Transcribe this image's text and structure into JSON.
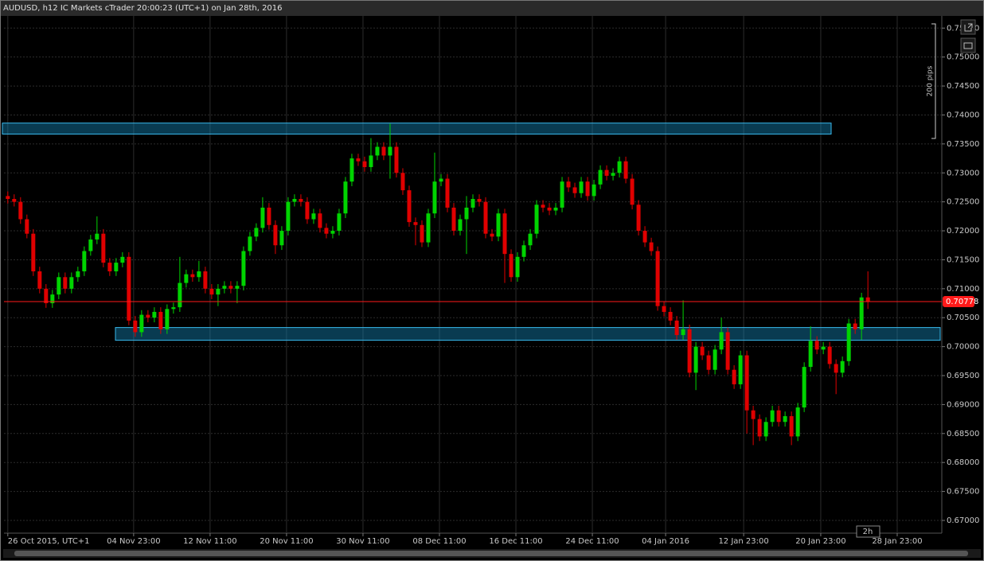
{
  "chart_data": {
    "type": "candlestick",
    "title": "AUDUSD, h12 IC Markets cTrader 20:00:23 (UTC+1) on Jan 28th, 2016",
    "scale_note": "200 pips",
    "timeframe_badge": "2h",
    "up_color": "#00d400",
    "down_color": "#e00000",
    "grid": true,
    "xlim": [
      -0.6,
      146.6
    ],
    "xticks": [
      {
        "value": 0,
        "label": "26 Oct 2015, UTC+1"
      },
      {
        "value": 19.75,
        "label": "04 Nov 23:00"
      },
      {
        "value": 31.75,
        "label": "12 Nov 11:00"
      },
      {
        "value": 43.75,
        "label": "20 Nov 11:00"
      },
      {
        "value": 55.75,
        "label": "30 Nov 11:00"
      },
      {
        "value": 67.75,
        "label": "08 Dec 11:00"
      },
      {
        "value": 79.75,
        "label": "16 Dec 11:00"
      },
      {
        "value": 91.75,
        "label": "24 Dec 11:00"
      },
      {
        "value": 103.25,
        "label": "04 Jan 2016"
      },
      {
        "value": 115.5,
        "label": "12 Jan 23:00"
      },
      {
        "value": 127.6,
        "label": "20 Jan 23:00"
      },
      {
        "value": 139.6,
        "label": "28 Jan 23:00"
      }
    ],
    "ylim": [
      0.6678,
      0.7571
    ],
    "yticks": [
      {
        "value": 0.67,
        "label": "0.67000"
      },
      {
        "value": 0.675,
        "label": "0.67500"
      },
      {
        "value": 0.68,
        "label": "0.68000"
      },
      {
        "value": 0.685,
        "label": "0.68500"
      },
      {
        "value": 0.69,
        "label": "0.69000"
      },
      {
        "value": 0.695,
        "label": "0.69500"
      },
      {
        "value": 0.7,
        "label": "0.70000"
      },
      {
        "value": 0.705,
        "label": "0.70500"
      },
      {
        "value": 0.71,
        "label": "0.71000"
      },
      {
        "value": 0.715,
        "label": "0.71500"
      },
      {
        "value": 0.72,
        "label": "0.72000"
      },
      {
        "value": 0.725,
        "label": "0.72500"
      },
      {
        "value": 0.73,
        "label": "0.73000"
      },
      {
        "value": 0.735,
        "label": "0.73500"
      },
      {
        "value": 0.74,
        "label": "0.74000"
      },
      {
        "value": 0.745,
        "label": "0.74500"
      },
      {
        "value": 0.75,
        "label": "0.75000"
      },
      {
        "value": 0.755,
        "label": "0.75500"
      }
    ],
    "last_price": 0.70778,
    "last_price_color": "#ff1a1a",
    "zones": [
      {
        "low": 0.7367,
        "high": 0.7386
      },
      {
        "low": 0.7011,
        "high": 0.7033
      }
    ],
    "open": [
      0.726,
      0.7255,
      0.725,
      0.722,
      0.7195,
      0.713,
      0.71,
      0.7075,
      0.709,
      0.712,
      0.71,
      0.712,
      0.713,
      0.7165,
      0.7185,
      0.7195,
      0.7145,
      0.713,
      0.7145,
      0.7155,
      0.7045,
      0.7025,
      0.7055,
      0.705,
      0.706,
      0.703,
      0.7065,
      0.7068,
      0.711,
      0.7125,
      0.712,
      0.713,
      0.71,
      0.709,
      0.71,
      0.7105,
      0.71,
      0.7105,
      0.7165,
      0.719,
      0.7205,
      0.724,
      0.721,
      0.7175,
      0.72,
      0.725,
      0.7255,
      0.725,
      0.722,
      0.723,
      0.7205,
      0.7195,
      0.72,
      0.723,
      0.7285,
      0.7325,
      0.732,
      0.731,
      0.733,
      0.7345,
      0.733,
      0.7345,
      0.73,
      0.727,
      0.7215,
      0.721,
      0.718,
      0.723,
      0.7285,
      0.729,
      0.724,
      0.72,
      0.722,
      0.724,
      0.7255,
      0.725,
      0.7195,
      0.719,
      0.723,
      0.716,
      0.712,
      0.7155,
      0.7175,
      0.7195,
      0.7245,
      0.724,
      0.7235,
      0.724,
      0.7285,
      0.7275,
      0.7265,
      0.7285,
      0.726,
      0.728,
      0.7305,
      0.7295,
      0.73,
      0.732,
      0.729,
      0.7245,
      0.72,
      0.718,
      0.7165,
      0.707,
      0.706,
      0.7045,
      0.702,
      0.703,
      0.6955,
      0.7,
      0.6985,
      0.696,
      0.6995,
      0.7025,
      0.696,
      0.6935,
      0.6985,
      0.689,
      0.6875,
      0.6845,
      0.687,
      0.689,
      0.687,
      0.688,
      0.6845,
      0.6895,
      0.6965,
      0.701,
      0.6995,
      0.7,
      0.697,
      0.6955,
      0.6975,
      0.704,
      0.703,
      0.7085
    ],
    "high": [
      0.7268,
      0.7263,
      0.7258,
      0.7228,
      0.7203,
      0.7138,
      0.7108,
      0.7098,
      0.7128,
      0.7128,
      0.7128,
      0.7138,
      0.7173,
      0.7193,
      0.7225,
      0.7203,
      0.7153,
      0.7153,
      0.7163,
      0.7163,
      0.7053,
      0.7063,
      0.7063,
      0.7068,
      0.7068,
      0.7073,
      0.7076,
      0.7155,
      0.7133,
      0.7133,
      0.7148,
      0.7138,
      0.7108,
      0.7108,
      0.7113,
      0.7113,
      0.7113,
      0.7173,
      0.7198,
      0.7213,
      0.7258,
      0.7248,
      0.7218,
      0.7208,
      0.7258,
      0.7263,
      0.7263,
      0.7258,
      0.7238,
      0.7238,
      0.7213,
      0.7208,
      0.7238,
      0.7293,
      0.7333,
      0.7333,
      0.7328,
      0.736,
      0.7353,
      0.7353,
      0.7385,
      0.7353,
      0.7308,
      0.7278,
      0.7223,
      0.7218,
      0.7238,
      0.7335,
      0.7298,
      0.7298,
      0.7248,
      0.7228,
      0.726,
      0.7263,
      0.7263,
      0.7258,
      0.7203,
      0.7238,
      0.7238,
      0.7168,
      0.7163,
      0.7183,
      0.7203,
      0.7253,
      0.7253,
      0.7248,
      0.7248,
      0.7293,
      0.7293,
      0.7283,
      0.7293,
      0.7293,
      0.7288,
      0.7313,
      0.7313,
      0.7308,
      0.7328,
      0.7328,
      0.7298,
      0.7253,
      0.7208,
      0.7188,
      0.7173,
      0.7078,
      0.7068,
      0.7053,
      0.708,
      0.7038,
      0.7008,
      0.7008,
      0.6993,
      0.7003,
      0.705,
      0.7033,
      0.6968,
      0.6993,
      0.6993,
      0.6898,
      0.6883,
      0.6878,
      0.6898,
      0.6898,
      0.6888,
      0.6888,
      0.6903,
      0.6973,
      0.7035,
      0.7018,
      0.7008,
      0.7008,
      0.6978,
      0.6983,
      0.7048,
      0.7048,
      0.7093,
      0.713
    ],
    "low": [
      0.7247,
      0.7242,
      0.7212,
      0.7187,
      0.7122,
      0.7092,
      0.7067,
      0.7067,
      0.7082,
      0.7092,
      0.7092,
      0.7112,
      0.7122,
      0.7157,
      0.7177,
      0.7137,
      0.7122,
      0.7122,
      0.7137,
      0.7037,
      0.7017,
      0.7017,
      0.7042,
      0.7042,
      0.7022,
      0.7022,
      0.7057,
      0.706,
      0.7102,
      0.7112,
      0.7112,
      0.7092,
      0.7082,
      0.707,
      0.7092,
      0.7092,
      0.7075,
      0.7097,
      0.7157,
      0.7182,
      0.7197,
      0.7202,
      0.716,
      0.7167,
      0.7192,
      0.7242,
      0.7242,
      0.7212,
      0.7212,
      0.7197,
      0.7187,
      0.7187,
      0.7192,
      0.7222,
      0.7277,
      0.7312,
      0.7302,
      0.7302,
      0.7322,
      0.7322,
      0.729,
      0.7292,
      0.7262,
      0.7207,
      0.7175,
      0.7172,
      0.7172,
      0.7222,
      0.7277,
      0.7232,
      0.7192,
      0.7192,
      0.716,
      0.7232,
      0.7242,
      0.7187,
      0.7182,
      0.7182,
      0.711,
      0.7112,
      0.7112,
      0.7147,
      0.7167,
      0.7187,
      0.7232,
      0.7227,
      0.7227,
      0.7232,
      0.7267,
      0.7257,
      0.7257,
      0.7252,
      0.7252,
      0.7272,
      0.7287,
      0.7287,
      0.7292,
      0.7282,
      0.7237,
      0.7192,
      0.7172,
      0.7157,
      0.7062,
      0.7052,
      0.7037,
      0.7012,
      0.7012,
      0.6947,
      0.6925,
      0.6977,
      0.6952,
      0.6952,
      0.6987,
      0.6952,
      0.6927,
      0.6927,
      0.685,
      0.683,
      0.6837,
      0.6837,
      0.6862,
      0.6862,
      0.6862,
      0.683,
      0.6837,
      0.6887,
      0.6957,
      0.6987,
      0.6987,
      0.6962,
      0.6918,
      0.6947,
      0.6967,
      0.7022,
      0.7012,
      0.7065
    ],
    "close": [
      0.7255,
      0.725,
      0.722,
      0.7195,
      0.713,
      0.71,
      0.7075,
      0.709,
      0.712,
      0.71,
      0.712,
      0.713,
      0.7165,
      0.7185,
      0.7195,
      0.7145,
      0.713,
      0.7145,
      0.7155,
      0.7045,
      0.7025,
      0.7055,
      0.705,
      0.706,
      0.703,
      0.7065,
      0.7068,
      0.711,
      0.7125,
      0.712,
      0.713,
      0.71,
      0.709,
      0.71,
      0.7105,
      0.71,
      0.7105,
      0.7165,
      0.719,
      0.7205,
      0.724,
      0.721,
      0.7175,
      0.72,
      0.725,
      0.7255,
      0.725,
      0.722,
      0.723,
      0.7205,
      0.7195,
      0.72,
      0.723,
      0.7285,
      0.7325,
      0.732,
      0.731,
      0.733,
      0.7345,
      0.733,
      0.7345,
      0.73,
      0.727,
      0.7215,
      0.721,
      0.718,
      0.723,
      0.7285,
      0.729,
      0.724,
      0.72,
      0.722,
      0.724,
      0.7255,
      0.725,
      0.7195,
      0.719,
      0.723,
      0.716,
      0.712,
      0.7155,
      0.7175,
      0.7195,
      0.7245,
      0.724,
      0.7235,
      0.724,
      0.7285,
      0.7275,
      0.7265,
      0.7285,
      0.726,
      0.728,
      0.7305,
      0.7295,
      0.73,
      0.732,
      0.729,
      0.7245,
      0.72,
      0.718,
      0.7165,
      0.707,
      0.706,
      0.7045,
      0.702,
      0.703,
      0.6955,
      0.7,
      0.6985,
      0.696,
      0.6995,
      0.7025,
      0.696,
      0.6935,
      0.6985,
      0.689,
      0.6875,
      0.6845,
      0.687,
      0.689,
      0.687,
      0.688,
      0.6845,
      0.6895,
      0.6965,
      0.701,
      0.6995,
      0.7,
      0.697,
      0.6955,
      0.6975,
      0.704,
      0.703,
      0.7085,
      0.70778
    ]
  }
}
